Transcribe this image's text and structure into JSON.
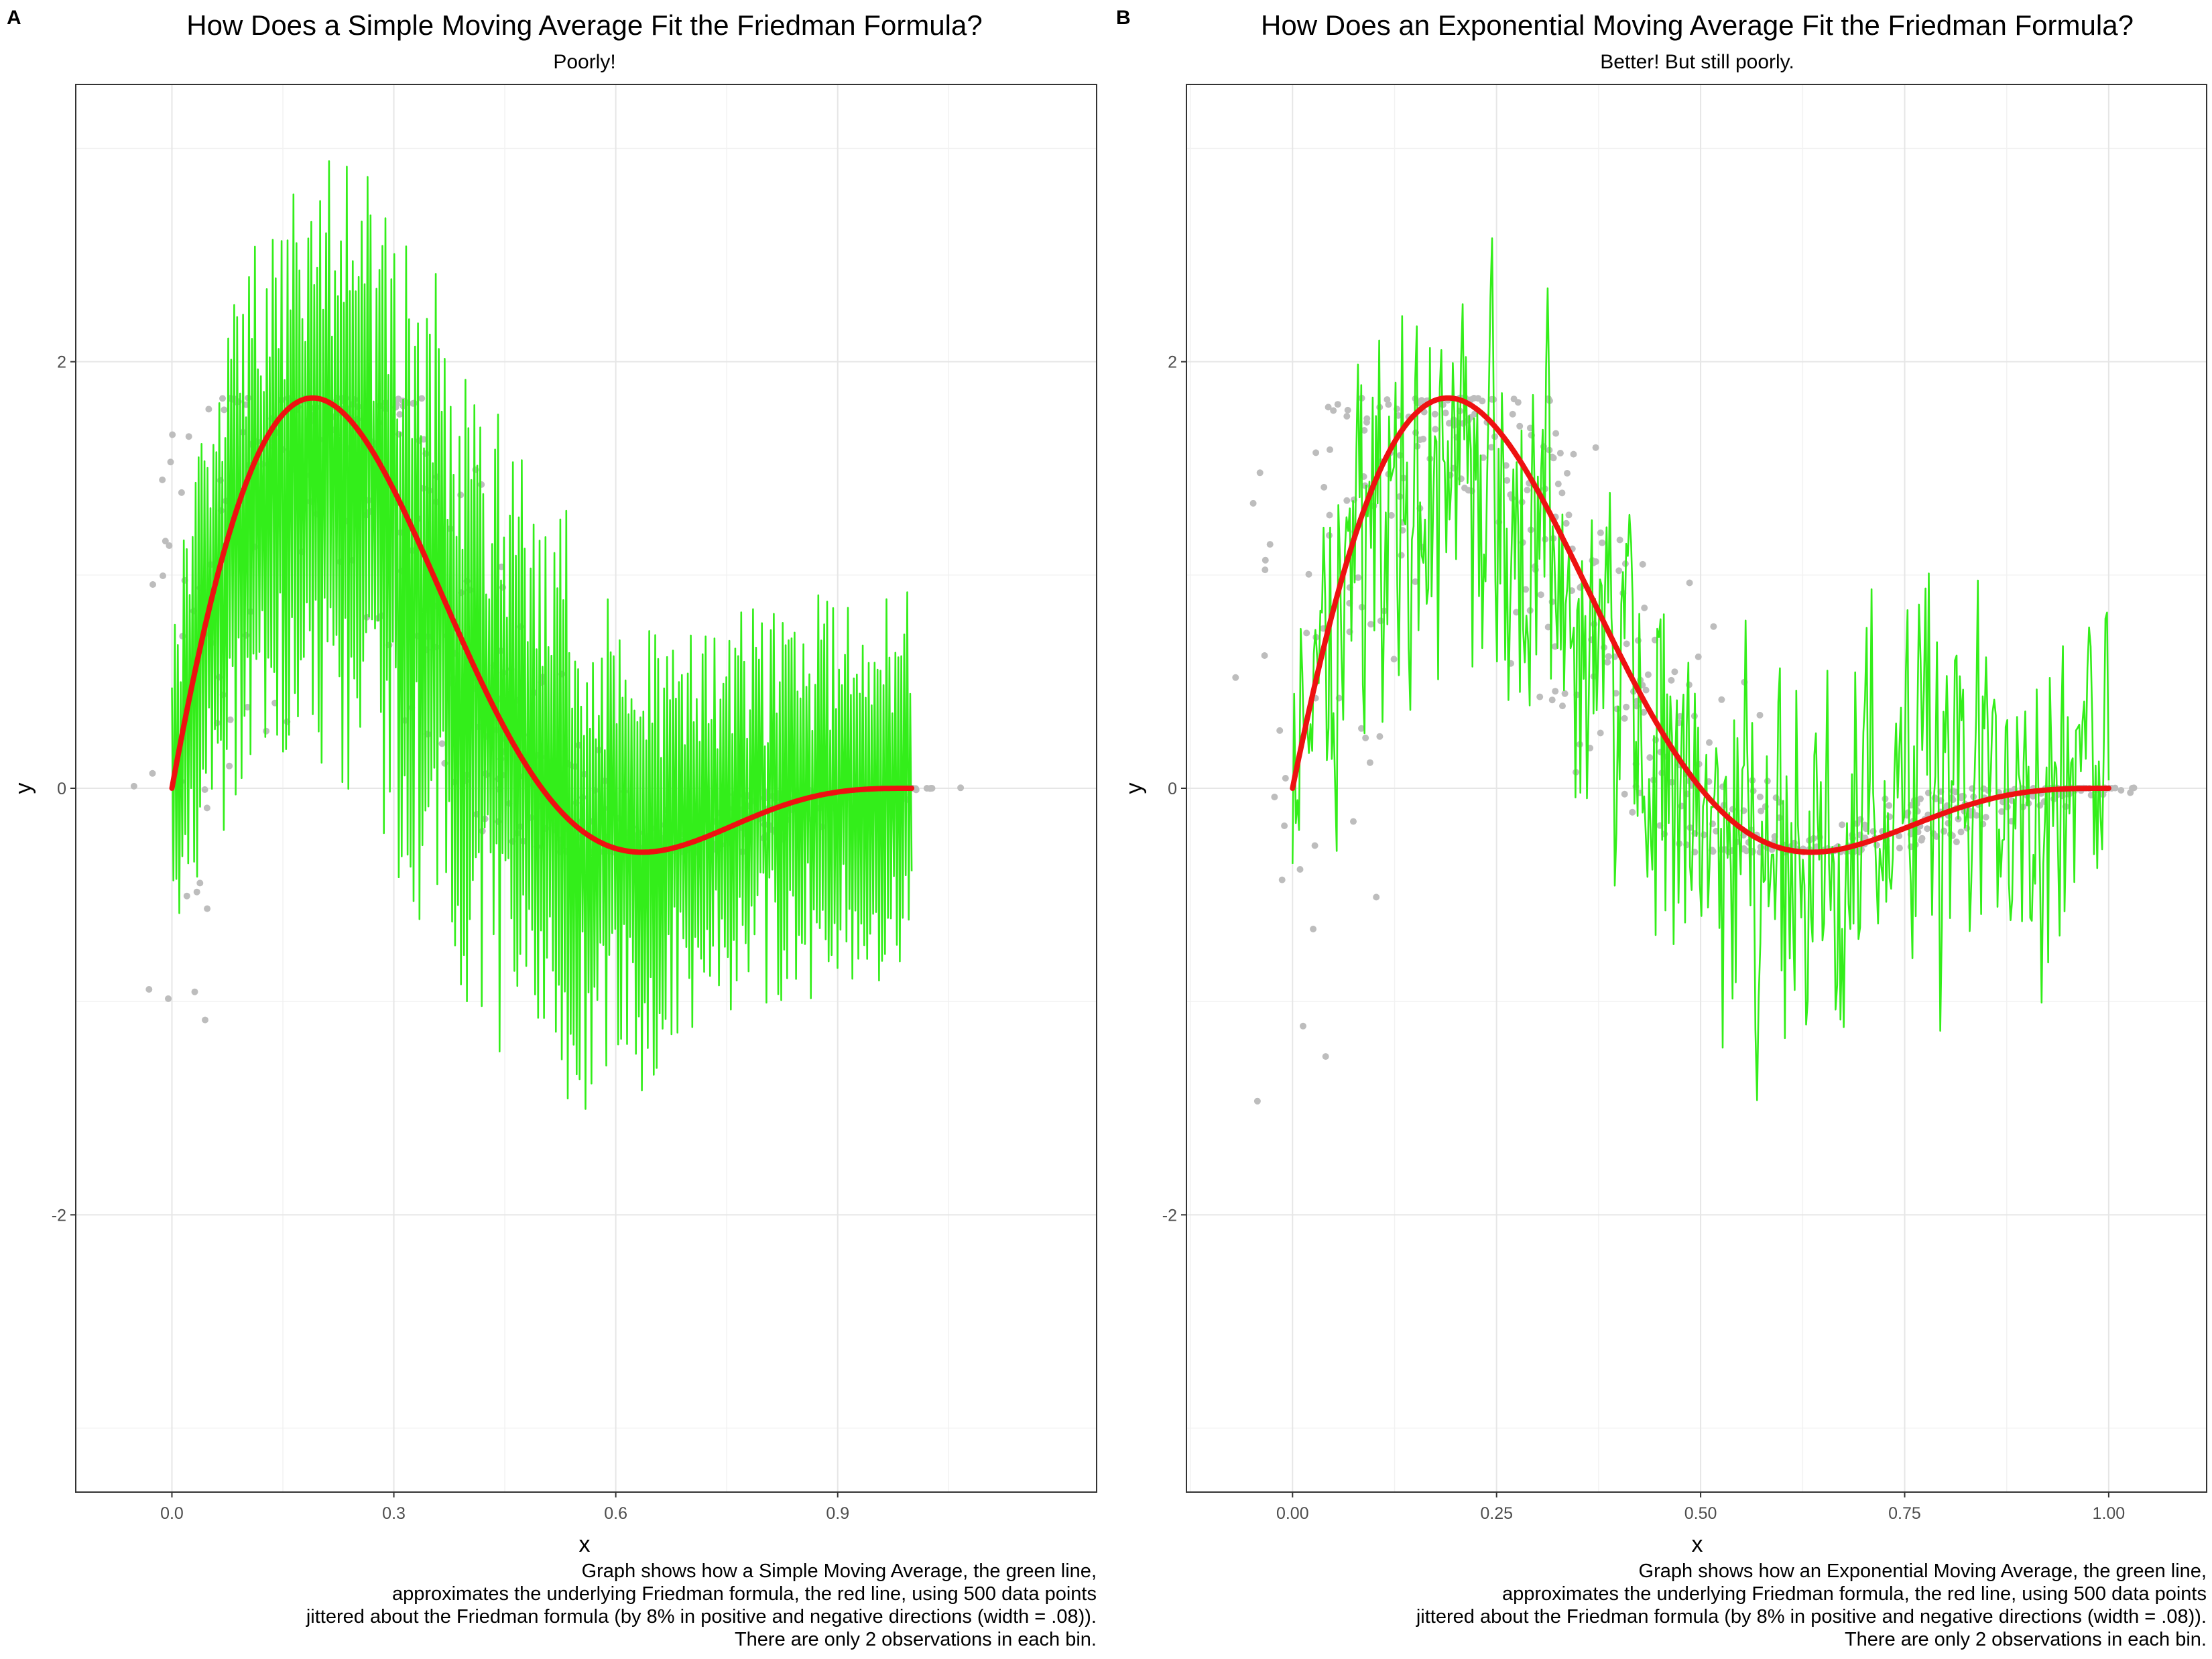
{
  "chart_data": [
    {
      "tag": "A",
      "type": "line",
      "title": "How Does a Simple Moving Average Fit the Friedman Formula?",
      "subtitle": "Poorly!",
      "xlabel": "x",
      "ylabel": "y",
      "xlim": [
        -0.13,
        1.25
      ],
      "ylim": [
        -3.3,
        3.3
      ],
      "x_ticks": [
        0.0,
        0.3,
        0.6,
        0.9
      ],
      "x_tick_labels": [
        "0.0",
        "0.3",
        "0.6",
        "0.9"
      ],
      "y_ticks": [
        -2,
        0,
        2
      ],
      "y_tick_labels": [
        "-2",
        "0",
        "2"
      ],
      "grid": true,
      "series": [
        {
          "kind": "points",
          "color": "#bdbdbd",
          "noise": 0.08,
          "x_extent": [
            -0.07,
            1.07
          ]
        },
        {
          "kind": "smoothed-line",
          "method": "simple",
          "color": "#33ee1a",
          "x_extent": [
            0,
            1
          ],
          "amplitude": 1.6
        },
        {
          "kind": "formula-line",
          "formula": "3 * sin(2 * pi * x) * (1 - x)^2",
          "color": "#ee1111",
          "x_extent": [
            0,
            1
          ]
        }
      ],
      "caption": [
        "Graph shows how a Simple Moving Average, the green line,",
        "approximates the underlying Friedman formula, the red line, using 500 data points",
        "jittered about the Friedman formula (by 8% in positive and negative directions (width = .08)).",
        "There are only 2 observations in each bin."
      ]
    },
    {
      "tag": "B",
      "type": "line",
      "title": "How Does an Exponential Moving Average Fit the Friedman Formula?",
      "subtitle": "Better! But still poorly.",
      "xlabel": "x",
      "ylabel": "y",
      "xlim": [
        -0.13,
        1.12
      ],
      "ylim": [
        -3.3,
        3.3
      ],
      "x_ticks": [
        0.0,
        0.25,
        0.5,
        0.75,
        1.0
      ],
      "x_tick_labels": [
        "0.00",
        "0.25",
        "0.50",
        "0.75",
        "1.00"
      ],
      "y_ticks": [
        -2,
        0,
        2
      ],
      "y_tick_labels": [
        "-2",
        "0",
        "2"
      ],
      "grid": true,
      "series": [
        {
          "kind": "points",
          "color": "#bdbdbd",
          "noise": 0.08,
          "x_extent": [
            -0.07,
            1.05
          ]
        },
        {
          "kind": "smoothed-line",
          "method": "exponential",
          "color": "#33ee1a",
          "x_extent": [
            0,
            1
          ],
          "amplitude": 0.75
        },
        {
          "kind": "formula-line",
          "formula": "3 * sin(2 * pi * x) * (1 - x)^2",
          "color": "#ee1111",
          "x_extent": [
            0,
            1
          ]
        }
      ],
      "caption": [
        "Graph shows how an Exponential Moving Average, the green line,",
        "approximates the underlying Friedman formula, the red line, using 500 data points",
        "jittered about the Friedman formula (by 8% in positive and negative directions (width = .08)).",
        "There are only 2 observations in each bin."
      ]
    }
  ]
}
